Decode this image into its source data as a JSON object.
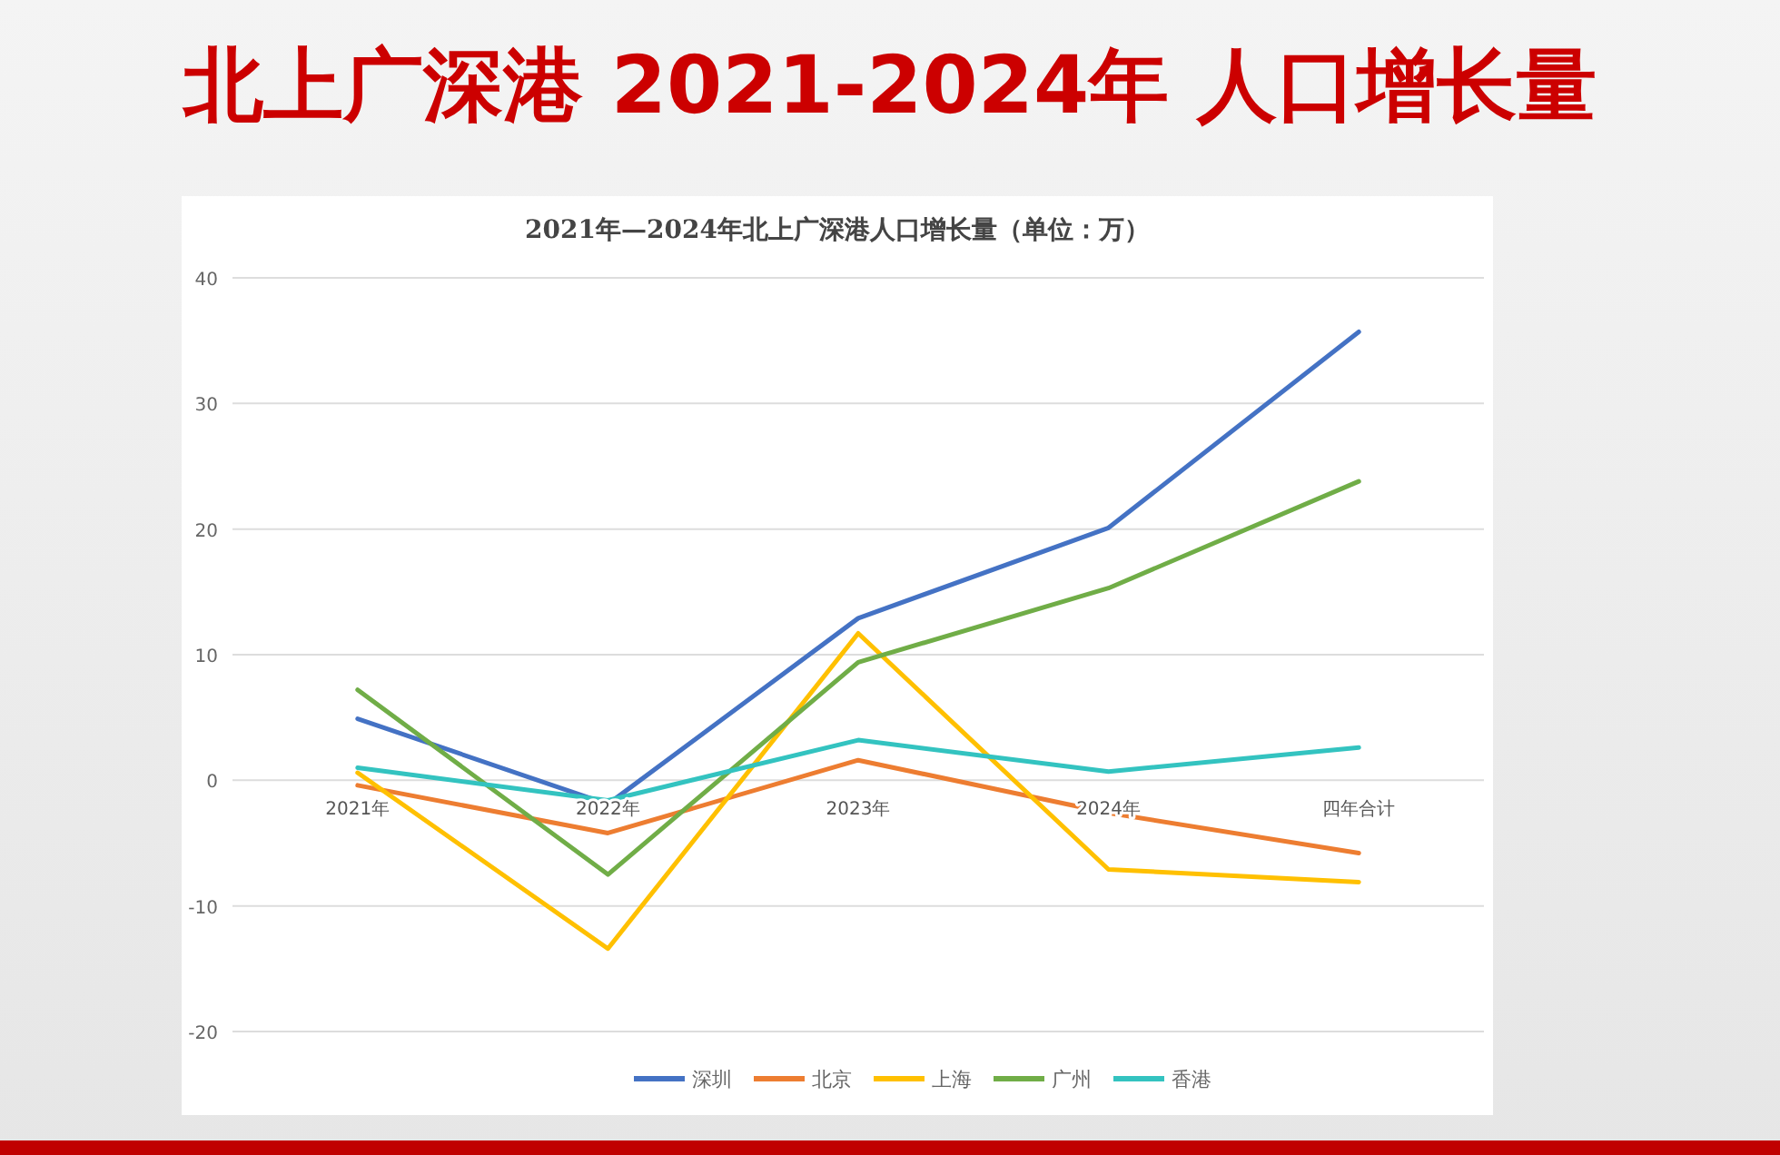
{
  "chart_data": {
    "type": "line",
    "title": "北上广深港  2021-2024年  人口增长量",
    "subtitle": "2021年—2024年北上广深港人口增长量（单位：万）",
    "categories": [
      "2021年",
      "2022年",
      "2023年",
      "2024年",
      "四年合计"
    ],
    "series": [
      {
        "name": "深圳",
        "color": "#4472c4",
        "values": [
          4.9,
          -1.9,
          12.9,
          20.1,
          35.7
        ]
      },
      {
        "name": "北京",
        "color": "#ed7d31",
        "values": [
          -0.4,
          -4.2,
          1.6,
          -2.6,
          -5.8
        ]
      },
      {
        "name": "上海",
        "color": "#ffc000",
        "values": [
          0.6,
          -13.4,
          11.7,
          -7.1,
          -8.1
        ]
      },
      {
        "name": "广州",
        "color": "#70ad47",
        "values": [
          7.2,
          -7.5,
          9.4,
          15.3,
          23.8
        ]
      },
      {
        "name": "香港",
        "color": "#33c3c0",
        "values": [
          1.0,
          -1.6,
          3.2,
          0.7,
          2.6
        ]
      }
    ],
    "ylim": [
      -20,
      40
    ],
    "yticks": [
      -20,
      -10,
      0,
      10,
      20,
      30,
      40
    ],
    "grid": "y",
    "legend": "bottom",
    "marker": "none",
    "line_style": "solid"
  }
}
